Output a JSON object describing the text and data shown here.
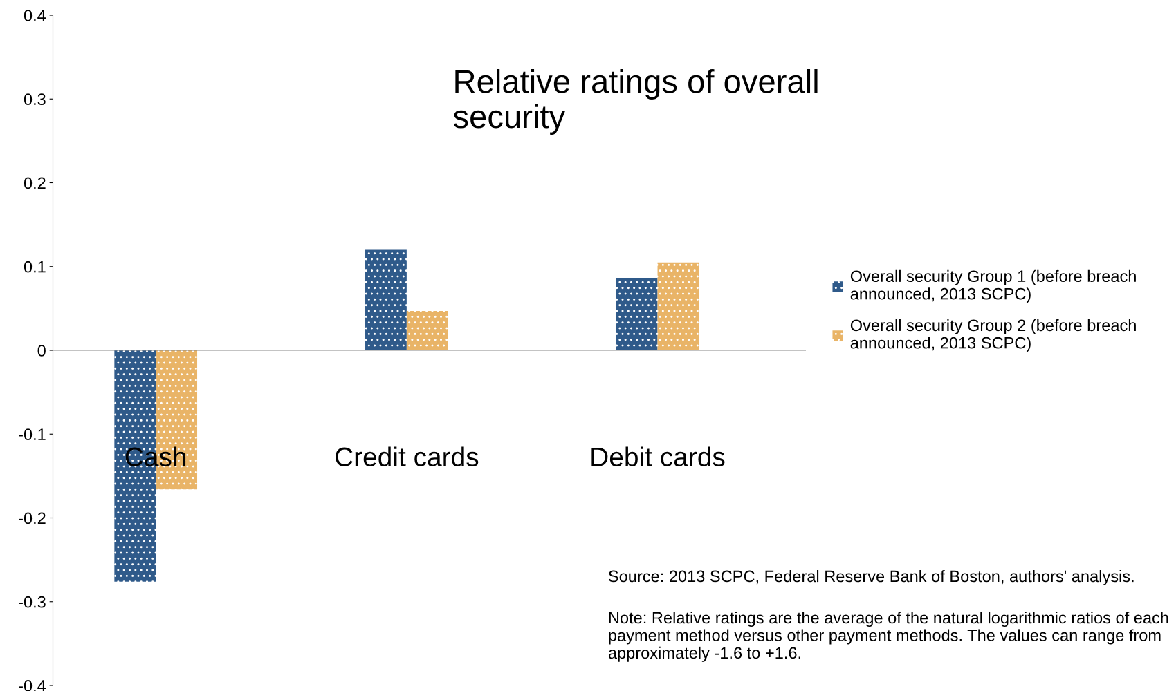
{
  "chart_data": {
    "type": "bar",
    "title": "Relative ratings of overall security",
    "categories": [
      "Cash",
      "Credit cards",
      "Debit cards"
    ],
    "series": [
      {
        "name": "Overall security Group 1 (before breach announced, 2013 SCPC)",
        "color": "#2f5a8a",
        "values": [
          -0.276,
          0.12,
          0.086
        ]
      },
      {
        "name": "Overall security Group 2 (before breach announced, 2013 SCPC)",
        "color": "#e9b467",
        "values": [
          -0.166,
          0.047,
          0.105
        ]
      }
    ],
    "ylim": [
      -0.4,
      0.4
    ],
    "yticks": [
      -0.4,
      -0.3,
      -0.2,
      -0.1,
      0,
      0.1,
      0.2,
      0.3,
      0.4
    ],
    "legend": "right",
    "annotations": [
      "Source: 2013 SCPC, Federal Reserve Bank of Boston, authors' analysis.",
      "Note: Relative ratings are the average of the natural logarithmic ratios of each payment method versus other payment methods. The values can range from approximately -1.6 to +1.6."
    ]
  }
}
